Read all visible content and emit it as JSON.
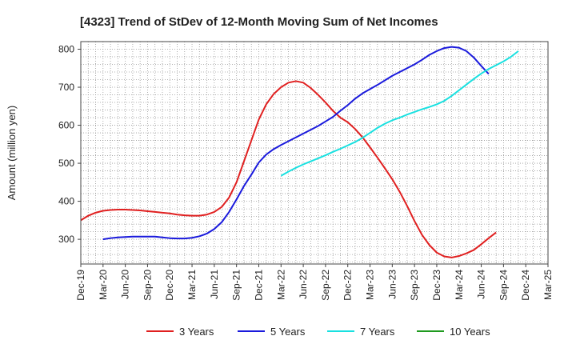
{
  "chart_data": {
    "type": "line",
    "title": "[4323]  Trend of StDev of 12-Month Moving Sum of Net Incomes",
    "xlabel": "",
    "ylabel": "Amount (million yen)",
    "ylim": [
      235,
      820
    ],
    "yticks": [
      300,
      400,
      500,
      600,
      700,
      800
    ],
    "x_ticks": [
      "Dec-19",
      "Mar-20",
      "Jun-20",
      "Sep-20",
      "Dec-20",
      "Mar-21",
      "Jun-21",
      "Sep-21",
      "Dec-21",
      "Mar-22",
      "Jun-22",
      "Sep-22",
      "Dec-22",
      "Mar-23",
      "Jun-23",
      "Sep-23",
      "Dec-23",
      "Mar-24",
      "Jun-24",
      "Sep-24",
      "Dec-24",
      "Mar-25"
    ],
    "x_period_months": 1,
    "grid": true,
    "legend_position": "bottom",
    "series": [
      {
        "name": "3 Years",
        "color": "#e02020",
        "start": "Dec-19",
        "values": [
          350,
          362,
          370,
          375,
          377,
          378,
          378,
          377,
          376,
          374,
          372,
          370,
          368,
          365,
          363,
          362,
          362,
          365,
          372,
          385,
          410,
          450,
          505,
          560,
          615,
          655,
          682,
          700,
          712,
          716,
          712,
          698,
          680,
          660,
          638,
          620,
          608,
          590,
          568,
          542,
          515,
          487,
          458,
          425,
          388,
          348,
          312,
          285,
          265,
          255,
          252,
          256,
          263,
          272,
          287,
          303,
          318
        ]
      },
      {
        "name": "5 Years",
        "color": "#1a1adc",
        "start": "Mar-20",
        "values": [
          300,
          303,
          305,
          306,
          307,
          307,
          307,
          307,
          305,
          303,
          302,
          302,
          304,
          308,
          315,
          327,
          345,
          372,
          405,
          440,
          470,
          502,
          523,
          537,
          548,
          558,
          568,
          578,
          588,
          598,
          610,
          622,
          638,
          653,
          670,
          684,
          695,
          706,
          718,
          730,
          740,
          750,
          760,
          772,
          785,
          795,
          803,
          806,
          804,
          795,
          778,
          756,
          735
        ]
      },
      {
        "name": "7 Years",
        "color": "#19e0e0",
        "start": "Mar-22",
        "values": [
          467,
          478,
          488,
          497,
          505,
          513,
          521,
          530,
          538,
          547,
          556,
          567,
          580,
          593,
          604,
          613,
          620,
          628,
          635,
          642,
          648,
          655,
          664,
          677,
          692,
          707,
          722,
          736,
          748,
          758,
          768,
          780,
          795
        ]
      },
      {
        "name": "10 Years",
        "color": "#1f9a1f",
        "start": "Dec-19",
        "values": []
      }
    ]
  }
}
